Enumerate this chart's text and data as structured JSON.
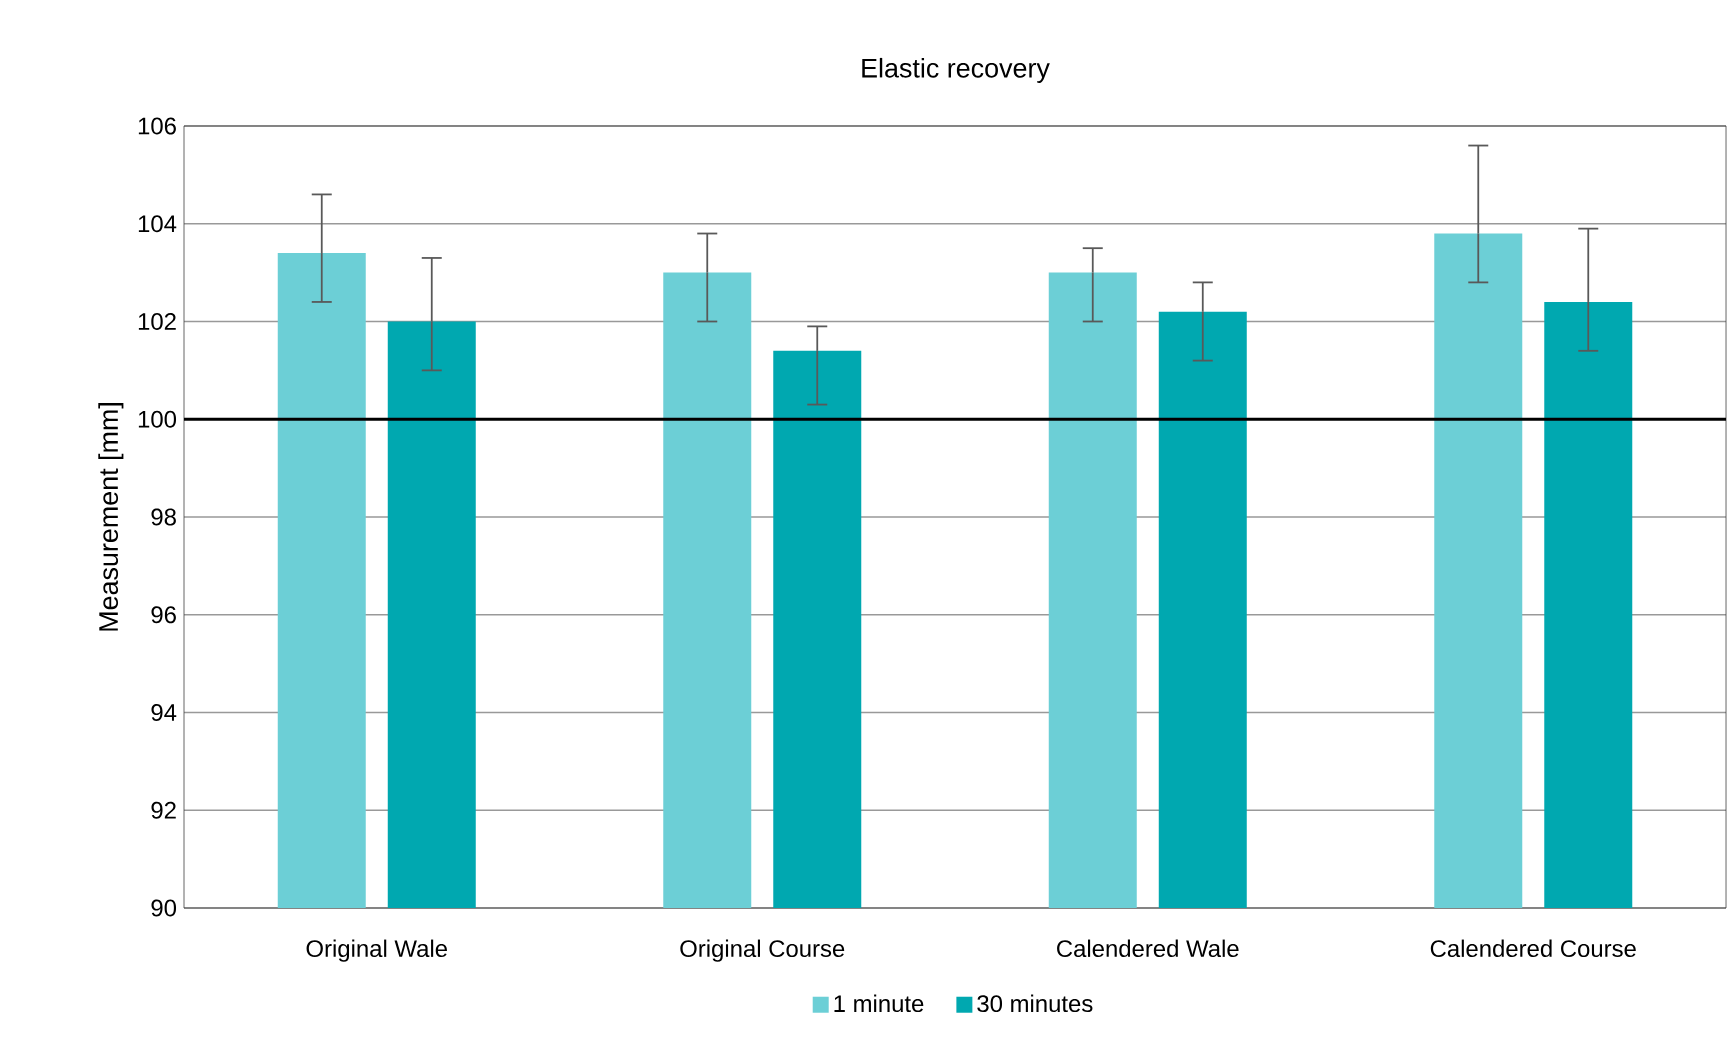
{
  "chart_data": {
    "type": "bar",
    "title": "Elastic recovery",
    "ylabel": "Measurement [mm]",
    "categories": [
      "Original Wale",
      "Original Course",
      "Calendered Wale",
      "Calendered Course"
    ],
    "series": [
      {
        "name": "1 minute",
        "color": "#6ccfd6",
        "values": [
          103.4,
          103.0,
          103.0,
          103.8
        ],
        "errors": [
          [
            102.4,
            104.6
          ],
          [
            102.0,
            103.8
          ],
          [
            102.0,
            103.5
          ],
          [
            102.8,
            105.6
          ]
        ]
      },
      {
        "name": "30 minutes",
        "color": "#00a8b0",
        "values": [
          102.0,
          101.4,
          102.2,
          102.4
        ],
        "errors": [
          [
            101.0,
            103.3
          ],
          [
            100.3,
            101.9
          ],
          [
            101.2,
            102.8
          ],
          [
            101.4,
            103.9
          ]
        ]
      }
    ],
    "ylim": [
      90,
      106
    ],
    "yticks": [
      90,
      92,
      94,
      96,
      98,
      100,
      102,
      104,
      106
    ],
    "grid": "y",
    "legend": "bottom",
    "ref_lines": [
      {
        "axis": "y",
        "value": 100,
        "color": "#000000"
      }
    ]
  }
}
